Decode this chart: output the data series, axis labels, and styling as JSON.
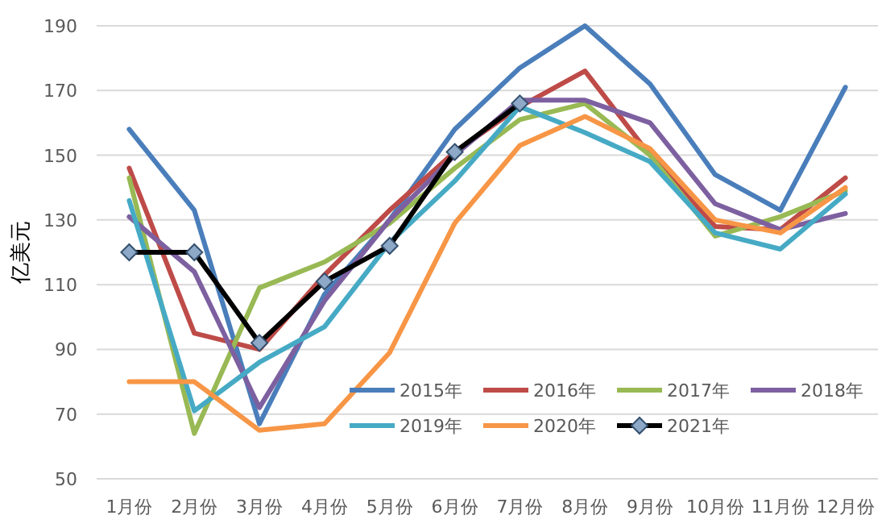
{
  "chart_data": {
    "type": "line",
    "ylabel": "亿美元",
    "categories": [
      "1月份",
      "2月份",
      "3月份",
      "4月份",
      "5月份",
      "6月份",
      "7月份",
      "8月份",
      "9月份",
      "10月份",
      "11月份",
      "12月份"
    ],
    "ylim": [
      50,
      190
    ],
    "yticks": [
      50,
      70,
      90,
      110,
      130,
      150,
      170,
      190
    ],
    "grid": "y",
    "legend": "bottom right",
    "series": [
      {
        "name": "2015年",
        "color": "#4a7ebb",
        "values": [
          158,
          133,
          67,
          107,
          130,
          158,
          177,
          190,
          172,
          144,
          133,
          171
        ]
      },
      {
        "name": "2016年",
        "color": "#be4b48",
        "values": [
          146,
          95,
          90,
          113,
          133,
          151,
          165,
          176,
          150,
          128,
          127,
          143
        ]
      },
      {
        "name": "2017年",
        "color": "#98b954",
        "values": [
          143,
          64,
          109,
          117,
          129,
          146,
          161,
          166,
          150,
          125,
          131,
          139
        ]
      },
      {
        "name": "2018年",
        "color": "#7d60a0",
        "values": [
          131,
          114,
          72,
          105,
          130,
          150,
          167,
          167,
          160,
          135,
          127,
          132
        ]
      },
      {
        "name": "2019年",
        "color": "#46aac5",
        "values": [
          136,
          71,
          86,
          97,
          123,
          142,
          165,
          157,
          148,
          126,
          121,
          138
        ]
      },
      {
        "name": "2020年",
        "color": "#f79646",
        "values": [
          80,
          80,
          65,
          67,
          89,
          129,
          153,
          162,
          152,
          130,
          126,
          140
        ]
      },
      {
        "name": "2021年",
        "color": "#000000",
        "marker": "diamond",
        "values": [
          120,
          120,
          92,
          111,
          122,
          151,
          166,
          null,
          null,
          null,
          null,
          null
        ]
      }
    ]
  }
}
